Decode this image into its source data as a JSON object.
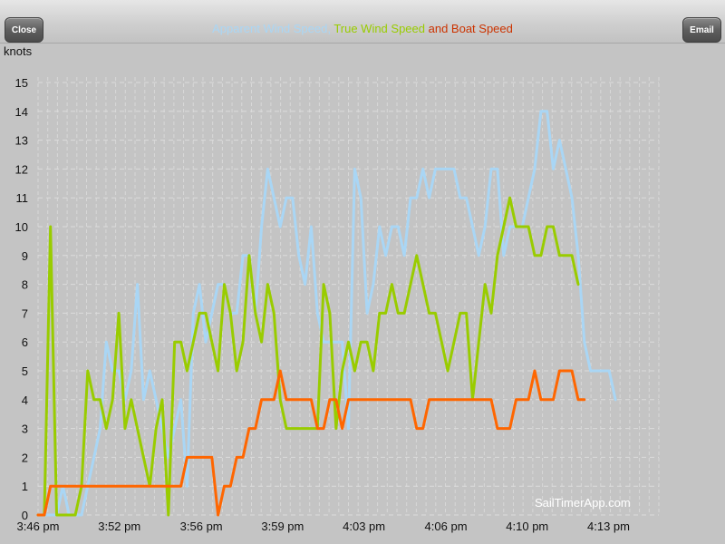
{
  "header": {
    "close_label": "Close",
    "email_label": "Email",
    "title_parts": [
      {
        "text": "Apparent Wind Speed",
        "color": "#a9d6f5"
      },
      {
        "text": ", ",
        "color": "#a9d6f5"
      },
      {
        "text": "True Wind Speed",
        "color": "#99cc00"
      },
      {
        "text": " and ",
        "color": "#cc3300"
      },
      {
        "text": "Boat Speed",
        "color": "#cc3300"
      }
    ]
  },
  "watermark": "SailTimerApp.com",
  "chart_data": {
    "type": "line",
    "ylabel": "knots",
    "ylim": [
      0,
      15
    ],
    "yticks": [
      0,
      1,
      2,
      3,
      4,
      5,
      6,
      7,
      8,
      9,
      10,
      11,
      12,
      13,
      14,
      15
    ],
    "xlim": [
      0,
      100
    ],
    "xtick_labels": [
      "3:46 pm",
      "3:52 pm",
      "3:56 pm",
      "3:59 pm",
      "4:03 pm",
      "4:06 pm",
      "4:10 pm",
      "4:13 pm"
    ],
    "xtick_positions": [
      0,
      13.1,
      26.3,
      39.4,
      52.5,
      65.7,
      78.8,
      91.9
    ],
    "grid": true,
    "series": [
      {
        "name": "Apparent Wind Speed",
        "color": "#a9d6f5",
        "points": [
          [
            0,
            0
          ],
          [
            1,
            0
          ],
          [
            2,
            0
          ],
          [
            3,
            0
          ],
          [
            4,
            1
          ],
          [
            5,
            0
          ],
          [
            6,
            0
          ],
          [
            7,
            0
          ],
          [
            8,
            1
          ],
          [
            9,
            2
          ],
          [
            10,
            3
          ],
          [
            11,
            6
          ],
          [
            12,
            5
          ],
          [
            13,
            5
          ],
          [
            14,
            4
          ],
          [
            15,
            5
          ],
          [
            16,
            8
          ],
          [
            17,
            4
          ],
          [
            18,
            5
          ],
          [
            19,
            4
          ],
          [
            20,
            3
          ],
          [
            21,
            2
          ],
          [
            22,
            3
          ],
          [
            23,
            4
          ],
          [
            24,
            1
          ],
          [
            25,
            7
          ],
          [
            26,
            8
          ],
          [
            27,
            6
          ],
          [
            28,
            7
          ],
          [
            29,
            8
          ],
          [
            30,
            8
          ],
          [
            31,
            7
          ],
          [
            32,
            7
          ],
          [
            33,
            9
          ],
          [
            34,
            9
          ],
          [
            35,
            7
          ],
          [
            36,
            10
          ],
          [
            37,
            12
          ],
          [
            38,
            11
          ],
          [
            39,
            10
          ],
          [
            40,
            11
          ],
          [
            41,
            11
          ],
          [
            42,
            9
          ],
          [
            43,
            8
          ],
          [
            44,
            10
          ],
          [
            45,
            7
          ],
          [
            46,
            6
          ],
          [
            47,
            6
          ],
          [
            48,
            6
          ],
          [
            49,
            6
          ],
          [
            50,
            3
          ],
          [
            51,
            12
          ],
          [
            52,
            11
          ],
          [
            53,
            7
          ],
          [
            54,
            8
          ],
          [
            55,
            10
          ],
          [
            56,
            9
          ],
          [
            57,
            10
          ],
          [
            58,
            10
          ],
          [
            59,
            9
          ],
          [
            60,
            11
          ],
          [
            61,
            11
          ],
          [
            62,
            12
          ],
          [
            63,
            11
          ],
          [
            64,
            12
          ],
          [
            65,
            12
          ],
          [
            66,
            12
          ],
          [
            67,
            12
          ],
          [
            68,
            11
          ],
          [
            69,
            11
          ],
          [
            70,
            10
          ],
          [
            71,
            9
          ],
          [
            72,
            10
          ],
          [
            73,
            12
          ],
          [
            74,
            12
          ],
          [
            75,
            9
          ],
          [
            76,
            10
          ],
          [
            77,
            10
          ],
          [
            78,
            10
          ],
          [
            79,
            11
          ],
          [
            80,
            12
          ],
          [
            81,
            14
          ],
          [
            82,
            14
          ],
          [
            83,
            12
          ],
          [
            84,
            13
          ],
          [
            85,
            12
          ],
          [
            86,
            11
          ],
          [
            87,
            9
          ],
          [
            88,
            6
          ],
          [
            89,
            5
          ],
          [
            90,
            5
          ],
          [
            91,
            5
          ],
          [
            92,
            5
          ],
          [
            93,
            4
          ]
        ]
      },
      {
        "name": "True Wind Speed",
        "color": "#99cc00",
        "points": [
          [
            0,
            0
          ],
          [
            1,
            0
          ],
          [
            2,
            10
          ],
          [
            3,
            0
          ],
          [
            4,
            0
          ],
          [
            5,
            0
          ],
          [
            6,
            0
          ],
          [
            7,
            1
          ],
          [
            8,
            5
          ],
          [
            9,
            4
          ],
          [
            10,
            4
          ],
          [
            11,
            3
          ],
          [
            12,
            4
          ],
          [
            13,
            7
          ],
          [
            14,
            3
          ],
          [
            15,
            4
          ],
          [
            16,
            3
          ],
          [
            17,
            2
          ],
          [
            18,
            1
          ],
          [
            19,
            3
          ],
          [
            20,
            4
          ],
          [
            21,
            0
          ],
          [
            22,
            6
          ],
          [
            23,
            6
          ],
          [
            24,
            5
          ],
          [
            25,
            6
          ],
          [
            26,
            7
          ],
          [
            27,
            7
          ],
          [
            28,
            6
          ],
          [
            29,
            5
          ],
          [
            30,
            8
          ],
          [
            31,
            7
          ],
          [
            32,
            5
          ],
          [
            33,
            6
          ],
          [
            34,
            9
          ],
          [
            35,
            7
          ],
          [
            36,
            6
          ],
          [
            37,
            8
          ],
          [
            38,
            7
          ],
          [
            39,
            4
          ],
          [
            40,
            3
          ],
          [
            41,
            3
          ],
          [
            42,
            3
          ],
          [
            43,
            3
          ],
          [
            44,
            3
          ],
          [
            45,
            3
          ],
          [
            46,
            8
          ],
          [
            47,
            7
          ],
          [
            48,
            3
          ],
          [
            49,
            5
          ],
          [
            50,
            6
          ],
          [
            51,
            5
          ],
          [
            52,
            6
          ],
          [
            53,
            6
          ],
          [
            54,
            5
          ],
          [
            55,
            7
          ],
          [
            56,
            7
          ],
          [
            57,
            8
          ],
          [
            58,
            7
          ],
          [
            59,
            7
          ],
          [
            60,
            8
          ],
          [
            61,
            9
          ],
          [
            62,
            8
          ],
          [
            63,
            7
          ],
          [
            64,
            7
          ],
          [
            65,
            6
          ],
          [
            66,
            5
          ],
          [
            67,
            6
          ],
          [
            68,
            7
          ],
          [
            69,
            7
          ],
          [
            70,
            4
          ],
          [
            71,
            6
          ],
          [
            72,
            8
          ],
          [
            73,
            7
          ],
          [
            74,
            9
          ],
          [
            75,
            10
          ],
          [
            76,
            11
          ],
          [
            77,
            10
          ],
          [
            78,
            10
          ],
          [
            79,
            10
          ],
          [
            80,
            9
          ],
          [
            81,
            9
          ],
          [
            82,
            10
          ],
          [
            83,
            10
          ],
          [
            84,
            9
          ],
          [
            85,
            9
          ],
          [
            86,
            9
          ],
          [
            87,
            8
          ]
        ]
      },
      {
        "name": "Boat Speed",
        "color": "#ff6600",
        "points": [
          [
            0,
            0
          ],
          [
            1,
            0
          ],
          [
            2,
            1
          ],
          [
            3,
            1
          ],
          [
            4,
            1
          ],
          [
            5,
            1
          ],
          [
            6,
            1
          ],
          [
            7,
            1
          ],
          [
            8,
            1
          ],
          [
            9,
            1
          ],
          [
            10,
            1
          ],
          [
            11,
            1
          ],
          [
            12,
            1
          ],
          [
            13,
            1
          ],
          [
            14,
            1
          ],
          [
            15,
            1
          ],
          [
            16,
            1
          ],
          [
            17,
            1
          ],
          [
            18,
            1
          ],
          [
            19,
            1
          ],
          [
            20,
            1
          ],
          [
            21,
            1
          ],
          [
            22,
            1
          ],
          [
            23,
            1
          ],
          [
            24,
            2
          ],
          [
            25,
            2
          ],
          [
            26,
            2
          ],
          [
            27,
            2
          ],
          [
            28,
            2
          ],
          [
            29,
            0
          ],
          [
            30,
            1
          ],
          [
            31,
            1
          ],
          [
            32,
            2
          ],
          [
            33,
            2
          ],
          [
            34,
            3
          ],
          [
            35,
            3
          ],
          [
            36,
            4
          ],
          [
            37,
            4
          ],
          [
            38,
            4
          ],
          [
            39,
            5
          ],
          [
            40,
            4
          ],
          [
            41,
            4
          ],
          [
            42,
            4
          ],
          [
            43,
            4
          ],
          [
            44,
            4
          ],
          [
            45,
            3
          ],
          [
            46,
            3
          ],
          [
            47,
            4
          ],
          [
            48,
            4
          ],
          [
            49,
            3
          ],
          [
            50,
            4
          ],
          [
            51,
            4
          ],
          [
            52,
            4
          ],
          [
            53,
            4
          ],
          [
            54,
            4
          ],
          [
            55,
            4
          ],
          [
            56,
            4
          ],
          [
            57,
            4
          ],
          [
            58,
            4
          ],
          [
            59,
            4
          ],
          [
            60,
            4
          ],
          [
            61,
            3
          ],
          [
            62,
            3
          ],
          [
            63,
            4
          ],
          [
            64,
            4
          ],
          [
            65,
            4
          ],
          [
            66,
            4
          ],
          [
            67,
            4
          ],
          [
            68,
            4
          ],
          [
            69,
            4
          ],
          [
            70,
            4
          ],
          [
            71,
            4
          ],
          [
            72,
            4
          ],
          [
            73,
            4
          ],
          [
            74,
            3
          ],
          [
            75,
            3
          ],
          [
            76,
            3
          ],
          [
            77,
            4
          ],
          [
            78,
            4
          ],
          [
            79,
            4
          ],
          [
            80,
            5
          ],
          [
            81,
            4
          ],
          [
            82,
            4
          ],
          [
            83,
            4
          ],
          [
            84,
            5
          ],
          [
            85,
            5
          ],
          [
            86,
            5
          ],
          [
            87,
            4
          ],
          [
            88,
            4
          ]
        ]
      }
    ]
  }
}
